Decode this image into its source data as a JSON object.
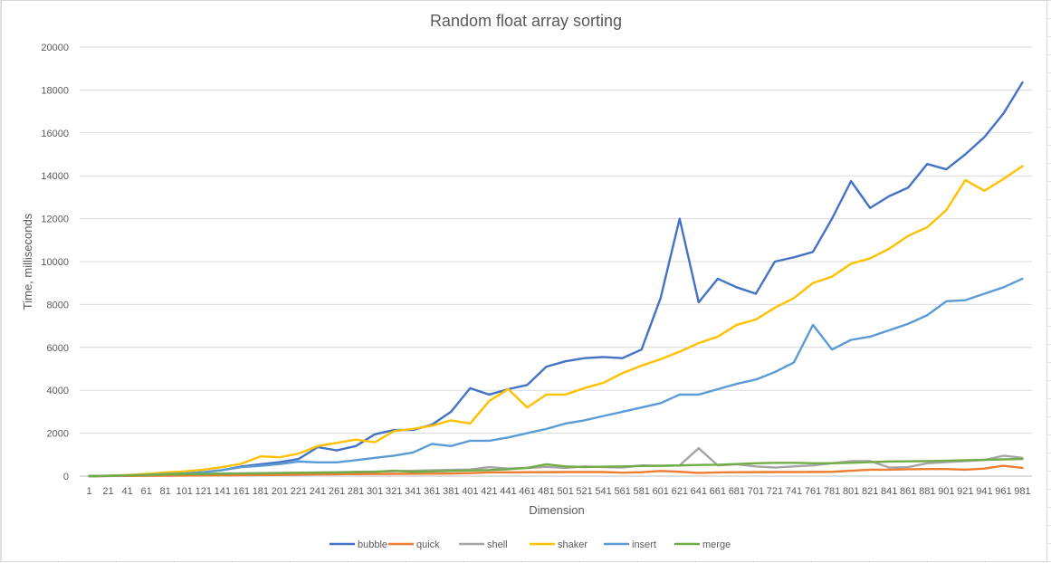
{
  "chart_data": {
    "type": "line",
    "title": "Random float array sorting",
    "xlabel": "Dimension",
    "ylabel": "Time, milliseconds",
    "ylim": [
      0,
      20000
    ],
    "yticks": [
      0,
      2000,
      4000,
      6000,
      8000,
      10000,
      12000,
      14000,
      16000,
      18000,
      20000
    ],
    "grid": "horizontal",
    "legend_position": "bottom",
    "categories": [
      1,
      21,
      41,
      61,
      81,
      101,
      121,
      141,
      161,
      181,
      201,
      221,
      241,
      261,
      281,
      301,
      321,
      341,
      361,
      381,
      401,
      421,
      441,
      461,
      481,
      501,
      521,
      541,
      561,
      581,
      601,
      621,
      641,
      661,
      681,
      701,
      721,
      741,
      761,
      781,
      801,
      821,
      841,
      861,
      881,
      901,
      921,
      941,
      961,
      981
    ],
    "series": [
      {
        "name": "bubble",
        "color": "#4472c4",
        "values": [
          0,
          10,
          40,
          70,
          100,
          130,
          180,
          280,
          450,
          550,
          650,
          800,
          1350,
          1200,
          1400,
          1950,
          2150,
          2150,
          2400,
          3000,
          4100,
          3800,
          4050,
          4250,
          5100,
          5350,
          5500,
          5550,
          5500,
          5900,
          8300,
          12000,
          8100,
          9200,
          8800,
          8500,
          10000,
          10200,
          10450,
          12000,
          13750,
          12500,
          13050,
          13450,
          14550,
          14300,
          15000,
          15800,
          16900,
          18350
        ]
      },
      {
        "name": "quick",
        "color": "#ed7d31",
        "values": [
          0,
          5,
          10,
          15,
          20,
          25,
          30,
          35,
          40,
          50,
          55,
          70,
          80,
          90,
          95,
          100,
          105,
          110,
          115,
          120,
          140,
          170,
          175,
          180,
          185,
          190,
          190,
          190,
          160,
          180,
          240,
          200,
          150,
          170,
          180,
          185,
          190,
          190,
          195,
          200,
          250,
          300,
          300,
          320,
          330,
          330,
          300,
          350,
          480,
          380
        ]
      },
      {
        "name": "shell",
        "color": "#a5a5a5",
        "values": [
          0,
          20,
          40,
          60,
          80,
          100,
          110,
          120,
          130,
          140,
          150,
          160,
          170,
          180,
          200,
          210,
          230,
          250,
          270,
          290,
          310,
          420,
          350,
          380,
          430,
          380,
          450,
          420,
          400,
          500,
          480,
          500,
          1300,
          500,
          550,
          450,
          400,
          450,
          500,
          600,
          700,
          700,
          400,
          420,
          600,
          650,
          700,
          750,
          950,
          850
        ]
      },
      {
        "name": "shaker",
        "color": "#ffc000",
        "values": [
          0,
          20,
          50,
          100,
          170,
          220,
          300,
          420,
          580,
          920,
          880,
          1050,
          1400,
          1550,
          1700,
          1580,
          2100,
          2200,
          2350,
          2600,
          2450,
          3500,
          4050,
          3200,
          3800,
          3800,
          4100,
          4350,
          4800,
          5150,
          5450,
          5800,
          6200,
          6500,
          7050,
          7300,
          7850,
          8300,
          9000,
          9300,
          9900,
          10150,
          10600,
          11200,
          11600,
          12400,
          13800,
          13300,
          13850,
          14450
        ]
      },
      {
        "name": "insert",
        "color": "#5b9bd5",
        "values": [
          0,
          10,
          30,
          60,
          90,
          120,
          180,
          280,
          420,
          480,
          560,
          680,
          640,
          640,
          740,
          850,
          950,
          1100,
          1500,
          1400,
          1650,
          1650,
          1800,
          2000,
          2200,
          2450,
          2600,
          2800,
          3000,
          3200,
          3400,
          3800,
          3800,
          4050,
          4300,
          4500,
          4850,
          5300,
          7050,
          5900,
          6350,
          6500,
          6800,
          7100,
          7500,
          8150,
          8200,
          8500,
          8800,
          9200
        ]
      },
      {
        "name": "merge",
        "color": "#70ad47",
        "values": [
          0,
          15,
          30,
          50,
          70,
          90,
          100,
          110,
          120,
          130,
          140,
          150,
          160,
          170,
          180,
          200,
          250,
          200,
          220,
          240,
          260,
          280,
          320,
          380,
          550,
          450,
          420,
          440,
          450,
          470,
          480,
          500,
          520,
          530,
          560,
          600,
          620,
          620,
          600,
          600,
          620,
          650,
          680,
          690,
          700,
          720,
          740,
          760,
          780,
          800
        ]
      }
    ]
  }
}
